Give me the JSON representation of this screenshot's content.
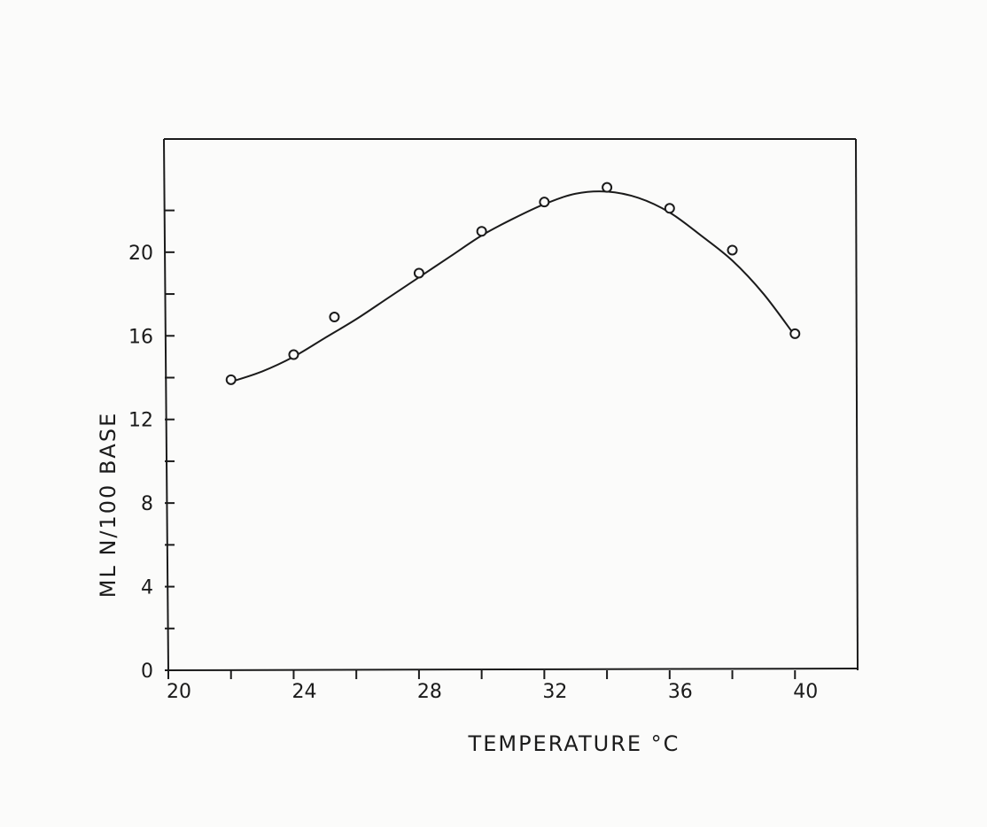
{
  "chart_data": {
    "type": "scatter",
    "title": "",
    "xlabel": "TEMPERATURE °C",
    "ylabel": "ML N/100 BASE",
    "xlim": [
      20,
      42
    ],
    "ylim": [
      0,
      25.5
    ],
    "xticks_major": [
      20,
      24,
      28,
      32,
      36,
      40
    ],
    "xticks_major_labels": [
      "20",
      "24",
      "28",
      "32",
      "36",
      "40"
    ],
    "xticks_minor": [
      22,
      26,
      30,
      34,
      38
    ],
    "yticks_major": [
      0,
      4,
      8,
      12,
      16,
      20
    ],
    "yticks_major_labels": [
      "0",
      "4",
      "8",
      "12",
      "16",
      "20"
    ],
    "yticks_minor": [
      2,
      6,
      10,
      14,
      18,
      22
    ],
    "grid": false,
    "series": [
      {
        "marker": "open-circle",
        "x": [
          22,
          24,
          25.3,
          28,
          30,
          32,
          34,
          36,
          38,
          40
        ],
        "y": [
          13.9,
          15.1,
          16.9,
          19.0,
          21.0,
          22.4,
          23.1,
          22.1,
          20.1,
          16.1
        ]
      }
    ],
    "fit_curve": {
      "style": "smooth-line",
      "x": [
        22,
        23,
        24,
        25,
        26,
        27,
        28,
        29,
        30,
        31,
        32,
        33,
        34,
        35,
        36,
        37,
        38,
        39,
        40
      ],
      "y": [
        13.8,
        14.3,
        15.0,
        15.9,
        16.8,
        17.8,
        18.8,
        19.8,
        20.8,
        21.6,
        22.3,
        22.8,
        22.9,
        22.6,
        21.9,
        20.8,
        19.6,
        18.0,
        16.0
      ]
    }
  }
}
